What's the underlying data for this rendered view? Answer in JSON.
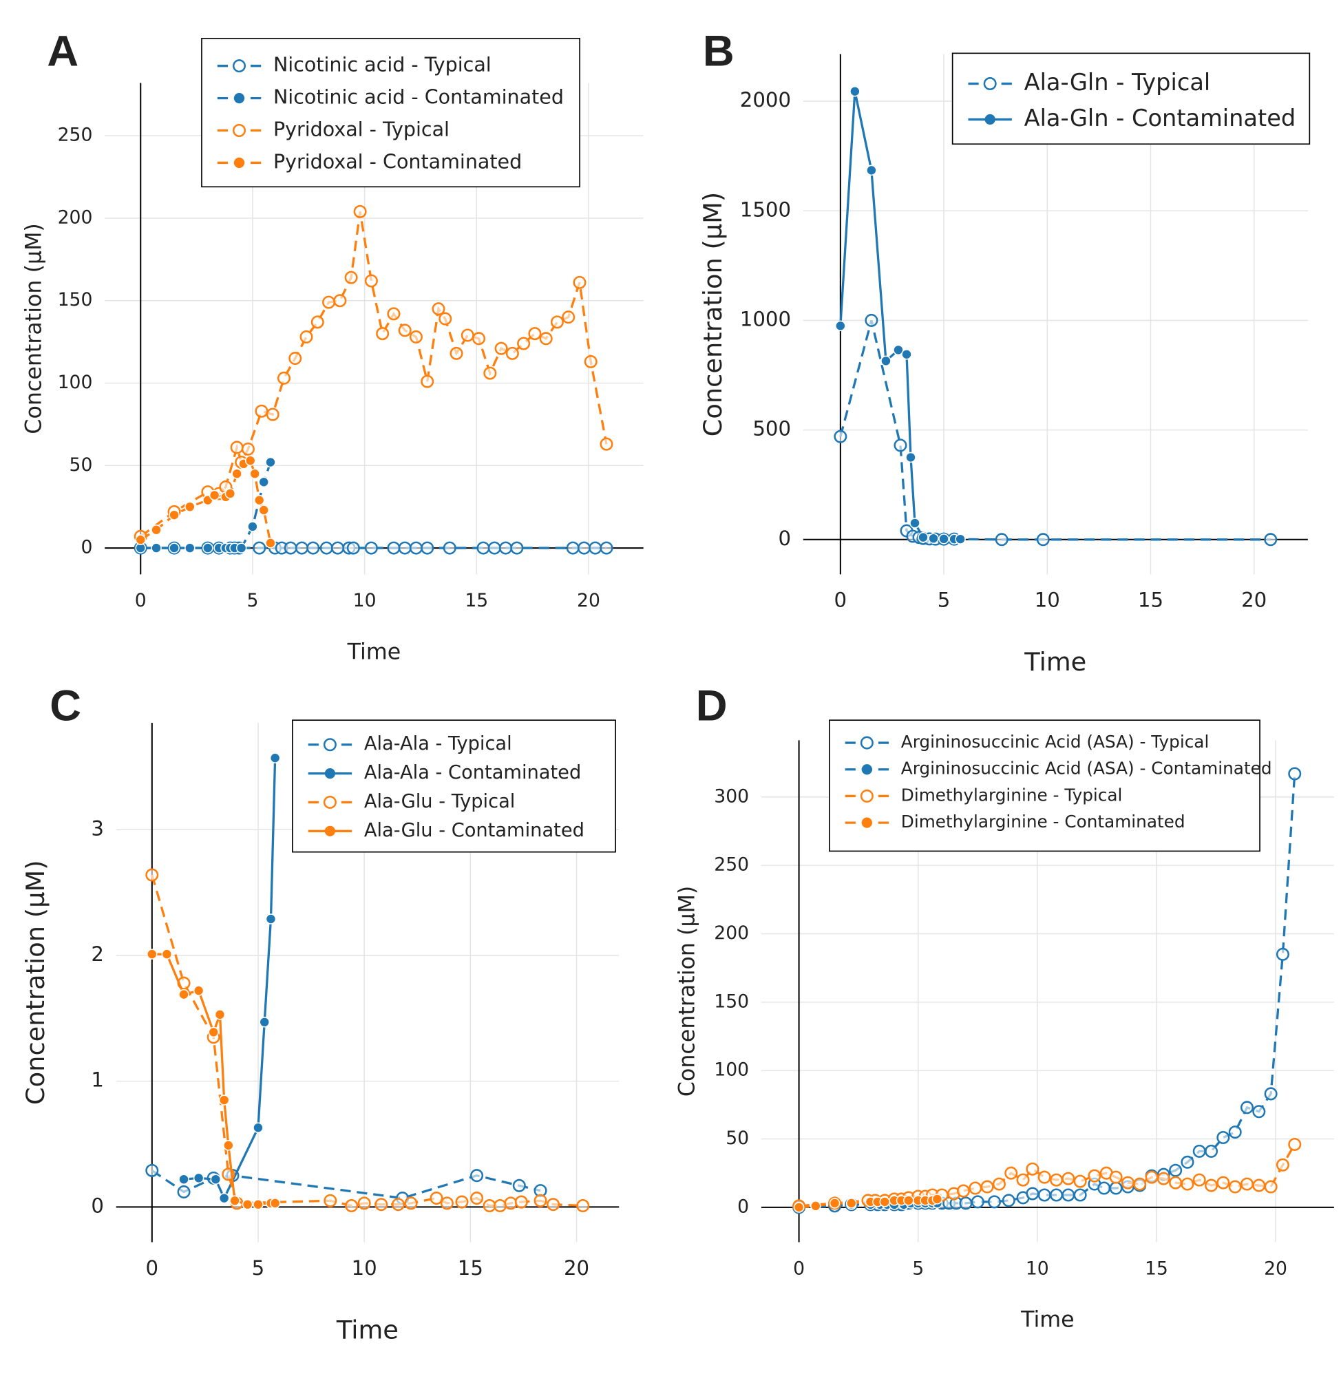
{
  "chart_data": [
    {
      "type": "line",
      "label": "A",
      "xlabel": "Time",
      "ylabel": "Concentration (µM)",
      "xlim": [
        -1.6,
        22.45
      ],
      "ylim": [
        -16,
        282
      ],
      "xticks": [
        0,
        5,
        10,
        15,
        20
      ],
      "yticks": [
        0,
        50,
        100,
        150,
        200,
        250
      ],
      "grid": true,
      "series": [
        {
          "name": "Nicotinic acid - Typical",
          "color": "#1f77b4",
          "marker": "open",
          "line": "dashed",
          "x": [
            0,
            1.5,
            3,
            3.5,
            4,
            4.2,
            4.4,
            5.3,
            6,
            6.3,
            6.7,
            7.2,
            7.7,
            8.3,
            8.8,
            9.3,
            9.5,
            10.3,
            11.3,
            11.8,
            12.3,
            12.8,
            13.8,
            15.3,
            15.8,
            16.3,
            16.8,
            19.3,
            19.8,
            20.3,
            20.8
          ],
          "values": [
            0,
            0,
            0,
            0,
            0,
            0,
            0,
            0,
            0,
            0,
            0,
            0,
            0,
            0,
            0,
            0,
            0,
            0,
            0,
            0,
            0,
            0,
            0,
            0,
            0,
            0,
            0,
            0,
            0,
            0,
            0
          ]
        },
        {
          "name": "Nicotinic acid - Contaminated",
          "color": "#1f77b4",
          "marker": "filled",
          "line": "dashed",
          "x": [
            0,
            0.7,
            1.5,
            2.2,
            3,
            3.5,
            3.8,
            4,
            4.2,
            4.5,
            5,
            5.5,
            5.8
          ],
          "values": [
            0,
            0,
            0,
            0,
            0,
            0,
            0,
            0,
            0,
            0,
            13,
            40,
            52
          ]
        },
        {
          "name": "Pyridoxal - Typical",
          "color": "#ff7f0e",
          "marker": "open",
          "line": "dashed",
          "x": [
            0,
            1.5,
            3,
            3.5,
            3.8,
            4.3,
            4.5,
            4.8,
            5.4,
            5.9,
            6.4,
            6.9,
            7.4,
            7.9,
            8.4,
            8.9,
            9.4,
            9.8,
            10.3,
            10.8,
            11.3,
            11.8,
            12.3,
            12.8,
            13.3,
            13.6,
            14.1,
            14.6,
            15.1,
            15.6,
            16.1,
            16.6,
            17.1,
            17.6,
            18.1,
            18.6,
            19.1,
            19.6,
            20.1,
            20.8
          ],
          "values": [
            7,
            22,
            34,
            33,
            37,
            61,
            52,
            60,
            83,
            81,
            103,
            115,
            128,
            137,
            149,
            150,
            164,
            204,
            162,
            130,
            142,
            132,
            128,
            101,
            145,
            139,
            118,
            129,
            127,
            106,
            121,
            118,
            124,
            130,
            127,
            137,
            140,
            161,
            113,
            63
          ]
        },
        {
          "name": "Pyridoxal - Contaminated",
          "color": "#ff7f0e",
          "marker": "filled",
          "line": "dashed",
          "x": [
            0,
            0.7,
            1.5,
            2.2,
            3,
            3.3,
            3.8,
            4,
            4.3,
            4.6,
            4.9,
            5.1,
            5.3,
            5.5,
            5.8
          ],
          "values": [
            5,
            11,
            20,
            25,
            29,
            32,
            31,
            33,
            45,
            51,
            53,
            45,
            29,
            23,
            3
          ]
        }
      ]
    },
    {
      "type": "line",
      "label": "B",
      "xlabel": "Time",
      "ylabel": "Concentration (µM)",
      "xlim": [
        -1.8,
        22.6
      ],
      "ylim": [
        -159,
        2215
      ],
      "xticks": [
        0,
        5,
        10,
        15,
        20
      ],
      "yticks": [
        0,
        500,
        1000,
        1500,
        2000
      ],
      "grid": true,
      "series": [
        {
          "name": "Ala-Gln - Typical",
          "color": "#1f77b4",
          "marker": "open",
          "line": "dashed",
          "x": [
            0,
            1.5,
            2.9,
            3.2,
            3.5,
            3.8,
            4,
            4.3,
            4.6,
            5,
            5.5,
            7.8,
            9.8,
            20.8
          ],
          "values": [
            470,
            1000,
            430,
            40,
            15,
            10,
            5,
            3,
            2,
            2,
            2,
            0,
            0,
            0
          ]
        },
        {
          "name": "Ala-Gln - Contaminated",
          "color": "#1f77b4",
          "marker": "filled",
          "line": "solid",
          "x": [
            0,
            0.7,
            1.5,
            2.2,
            2.8,
            3.2,
            3.4,
            3.6,
            4,
            4.5,
            5,
            5.5,
            5.8
          ],
          "values": [
            975,
            2045,
            1685,
            815,
            865,
            845,
            375,
            75,
            10,
            5,
            3,
            2,
            2
          ]
        }
      ]
    },
    {
      "type": "line",
      "label": "C",
      "xlabel": "Time",
      "ylabel": "Concentration (µM)",
      "xlim": [
        -1.69,
        22.0
      ],
      "ylim": [
        -0.28,
        3.85
      ],
      "xticks": [
        0,
        5,
        10,
        15,
        20
      ],
      "yticks": [
        0,
        1,
        2,
        3
      ],
      "grid": true,
      "series": [
        {
          "name": "Ala-Ala - Typical",
          "color": "#1f77b4",
          "marker": "open",
          "line": "dashed",
          "x": [
            0,
            1.5,
            2.9,
            3.8,
            11.8,
            15.3,
            17.3,
            18.3
          ],
          "values": [
            0.29,
            0.12,
            0.23,
            0.25,
            0.07,
            0.25,
            0.17,
            0.13
          ]
        },
        {
          "name": "Ala-Ala - Contaminated",
          "color": "#1f77b4",
          "marker": "filled",
          "line": "solid",
          "x": [
            1.5,
            2.2,
            3,
            3.4,
            5,
            5.3,
            5.6,
            5.8
          ],
          "values": [
            0.22,
            0.23,
            0.22,
            0.07,
            0.63,
            1.47,
            2.29,
            3.57
          ]
        },
        {
          "name": "Ala-Glu - Typical",
          "color": "#ff7f0e",
          "marker": "open",
          "line": "dashed",
          "x": [
            0,
            1.5,
            2.9,
            3.6,
            4,
            8.4,
            9.4,
            10,
            10.8,
            11.6,
            12.2,
            13.4,
            13.9,
            14.6,
            15.3,
            15.9,
            16.4,
            16.9,
            17.4,
            18.3,
            18.9,
            20.3
          ],
          "values": [
            2.64,
            1.78,
            1.35,
            0.26,
            0.03,
            0.05,
            0.01,
            0.03,
            0.02,
            0.02,
            0.03,
            0.07,
            0.03,
            0.04,
            0.07,
            0.01,
            0.01,
            0.03,
            0.04,
            0.05,
            0.02,
            0.01
          ]
        },
        {
          "name": "Ala-Glu - Contaminated",
          "color": "#ff7f0e",
          "marker": "filled",
          "line": "solid",
          "x": [
            0,
            0.7,
            1.5,
            2.2,
            2.9,
            3.2,
            3.4,
            3.6,
            3.9,
            4.5,
            5,
            5.6,
            5.8
          ],
          "values": [
            2.01,
            2.01,
            1.69,
            1.72,
            1.39,
            1.53,
            0.85,
            0.49,
            0.05,
            0.02,
            0.02,
            0.03,
            0.03
          ]
        }
      ]
    },
    {
      "type": "line",
      "label": "D",
      "xlabel": "Time",
      "ylabel": "Concentration (µM)",
      "xlim": [
        -1.58,
        22.45
      ],
      "ylim": [
        -25.5,
        341.5
      ],
      "xticks": [
        0,
        5,
        10,
        15,
        20
      ],
      "yticks": [
        0,
        50,
        100,
        150,
        200,
        250,
        300
      ],
      "grid": true,
      "series": [
        {
          "name": "Argininosuccinic Acid (ASA) - Typical",
          "color": "#1f77b4",
          "marker": "open",
          "line": "dashed",
          "x": [
            0,
            1.5,
            2.2,
            3,
            3.3,
            3.6,
            4,
            4.3,
            4.6,
            5,
            5.3,
            5.6,
            6,
            6.3,
            6.6,
            7,
            7.5,
            8.2,
            8.8,
            9.4,
            9.8,
            10.3,
            10.8,
            11.3,
            11.8,
            12.4,
            12.8,
            13.3,
            13.8,
            14.3,
            14.8,
            15.3,
            15.8,
            16.3,
            16.8,
            17.3,
            17.8,
            18.3,
            18.8,
            19.3,
            19.8,
            20.3,
            20.8
          ],
          "values": [
            0,
            1,
            2,
            2,
            2,
            2,
            2,
            2,
            3,
            3,
            3,
            3,
            3,
            3,
            3,
            3,
            4,
            4,
            5,
            7,
            10,
            9,
            9,
            9,
            9,
            17,
            14,
            14,
            15,
            16,
            23,
            24,
            27,
            33,
            41,
            41,
            51,
            55,
            73,
            70,
            83,
            185,
            317
          ]
        },
        {
          "name": "Argininosuccinic Acid (ASA) - Contaminated",
          "color": "#1f77b4",
          "marker": "filled",
          "line": "dashed",
          "x": [
            0,
            0.7,
            1.5,
            2.2,
            3,
            3.4,
            3.7,
            4,
            4.4,
            4.7,
            5,
            5.3,
            5.6,
            5.8
          ],
          "values": [
            0,
            1,
            2,
            2,
            2,
            2,
            2,
            2,
            2,
            3,
            3,
            3,
            3,
            3
          ]
        },
        {
          "name": "Dimethylarginine - Typical",
          "color": "#ff7f0e",
          "marker": "open",
          "line": "dashed",
          "x": [
            0,
            1.5,
            2.9,
            3.2,
            3.6,
            4,
            4.3,
            4.6,
            5,
            5.3,
            5.6,
            6,
            6.5,
            6.9,
            7.4,
            7.9,
            8.4,
            8.9,
            9.4,
            9.8,
            10.3,
            10.8,
            11.3,
            11.8,
            12.4,
            12.9,
            13.3,
            13.8,
            14.3,
            14.8,
            15.3,
            15.8,
            16.3,
            16.8,
            17.3,
            17.8,
            18.3,
            18.8,
            19.3,
            19.8,
            20.3,
            20.8
          ],
          "values": [
            1,
            3,
            5,
            5,
            5,
            6,
            6,
            7,
            8,
            8,
            9,
            9,
            10,
            12,
            14,
            15,
            17,
            25,
            20,
            28,
            22,
            20,
            21,
            19,
            23,
            25,
            22,
            18,
            17,
            22,
            21,
            18,
            17,
            20,
            16,
            18,
            15,
            17,
            16,
            15,
            31,
            46
          ]
        },
        {
          "name": "Dimethylarginine - Contaminated",
          "color": "#ff7f0e",
          "marker": "filled",
          "line": "dashed",
          "x": [
            0,
            0.7,
            1.5,
            2.2,
            3,
            3.3,
            3.6,
            4,
            4.3,
            4.6,
            5,
            5.3,
            5.6,
            5.8
          ],
          "values": [
            0,
            1,
            3,
            3,
            4,
            4,
            4,
            5,
            5,
            5,
            5,
            5,
            5,
            6
          ]
        }
      ]
    }
  ]
}
